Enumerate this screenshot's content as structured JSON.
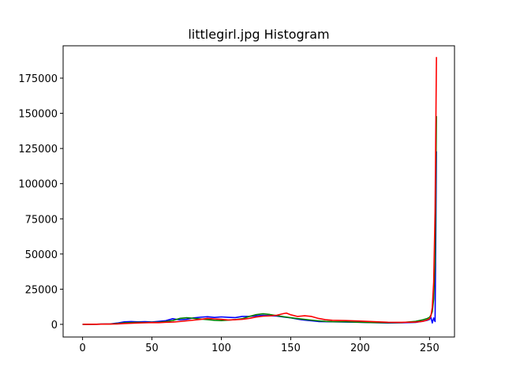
{
  "chart_data": {
    "type": "line",
    "title": "littlegirl.jpg Histogram",
    "xlabel": "",
    "ylabel": "",
    "xlim": [
      -14,
      268
    ],
    "ylim": [
      -9000,
      198000
    ],
    "xticks": [
      0,
      50,
      100,
      150,
      200,
      250
    ],
    "yticks": [
      0,
      25000,
      50000,
      75000,
      100000,
      125000,
      150000,
      175000
    ],
    "grid": false,
    "legend": "none",
    "series": [
      {
        "color": "#0000ff",
        "x": [
          0,
          10,
          20,
          25,
          30,
          35,
          40,
          45,
          50,
          55,
          60,
          65,
          70,
          75,
          80,
          85,
          90,
          95,
          100,
          105,
          110,
          115,
          120,
          125,
          130,
          135,
          140,
          145,
          150,
          155,
          160,
          165,
          170,
          175,
          180,
          190,
          200,
          210,
          220,
          230,
          240,
          245,
          248,
          250,
          251,
          252,
          253,
          254,
          255
        ],
        "y": [
          0,
          100,
          300,
          900,
          1800,
          2000,
          1800,
          1900,
          1700,
          2100,
          2600,
          4000,
          3200,
          3600,
          4600,
          5100,
          5400,
          4900,
          5300,
          5000,
          4800,
          5600,
          5700,
          6000,
          6400,
          6100,
          5900,
          5200,
          4600,
          3700,
          3000,
          2500,
          2000,
          1900,
          1800,
          1600,
          1500,
          1200,
          1000,
          1100,
          1400,
          2200,
          2800,
          3500,
          5000,
          1000,
          4500,
          2000,
          123000
        ]
      },
      {
        "color": "#008000",
        "x": [
          0,
          10,
          20,
          25,
          30,
          35,
          40,
          45,
          50,
          55,
          60,
          65,
          70,
          75,
          80,
          85,
          90,
          95,
          100,
          105,
          110,
          115,
          120,
          125,
          130,
          135,
          140,
          145,
          150,
          155,
          160,
          165,
          170,
          175,
          180,
          190,
          200,
          210,
          220,
          230,
          240,
          245,
          248,
          250,
          251,
          252,
          253,
          254,
          255
        ],
        "y": [
          0,
          100,
          200,
          600,
          1100,
          1300,
          1400,
          1300,
          1500,
          1500,
          2000,
          2700,
          4200,
          4700,
          4300,
          3800,
          3400,
          2900,
          2700,
          3000,
          3400,
          4000,
          5600,
          6900,
          7500,
          7000,
          6200,
          5400,
          4700,
          4100,
          3500,
          3000,
          2500,
          2100,
          1900,
          1800,
          1500,
          1300,
          1200,
          1300,
          2100,
          3200,
          4000,
          5000,
          6500,
          9000,
          18000,
          45000,
          148000
        ]
      },
      {
        "color": "#ff0000",
        "x": [
          0,
          10,
          20,
          25,
          30,
          35,
          40,
          45,
          50,
          55,
          60,
          65,
          70,
          75,
          80,
          85,
          90,
          95,
          100,
          105,
          110,
          115,
          120,
          125,
          130,
          135,
          140,
          145,
          147,
          150,
          155,
          160,
          165,
          170,
          175,
          180,
          190,
          200,
          210,
          220,
          230,
          240,
          245,
          248,
          250,
          251,
          252,
          253,
          254,
          255
        ],
        "y": [
          0,
          100,
          200,
          300,
          600,
          800,
          1000,
          1100,
          1300,
          1200,
          1500,
          1600,
          2000,
          2500,
          3000,
          3500,
          4200,
          3900,
          3600,
          3100,
          3300,
          3600,
          4200,
          5200,
          5800,
          6000,
          6500,
          7700,
          8000,
          6800,
          5600,
          6100,
          5600,
          4200,
          3300,
          2900,
          2700,
          2300,
          1900,
          1500,
          1400,
          1600,
          2100,
          3000,
          4000,
          6000,
          12000,
          30000,
          80000,
          190000
        ]
      }
    ]
  }
}
